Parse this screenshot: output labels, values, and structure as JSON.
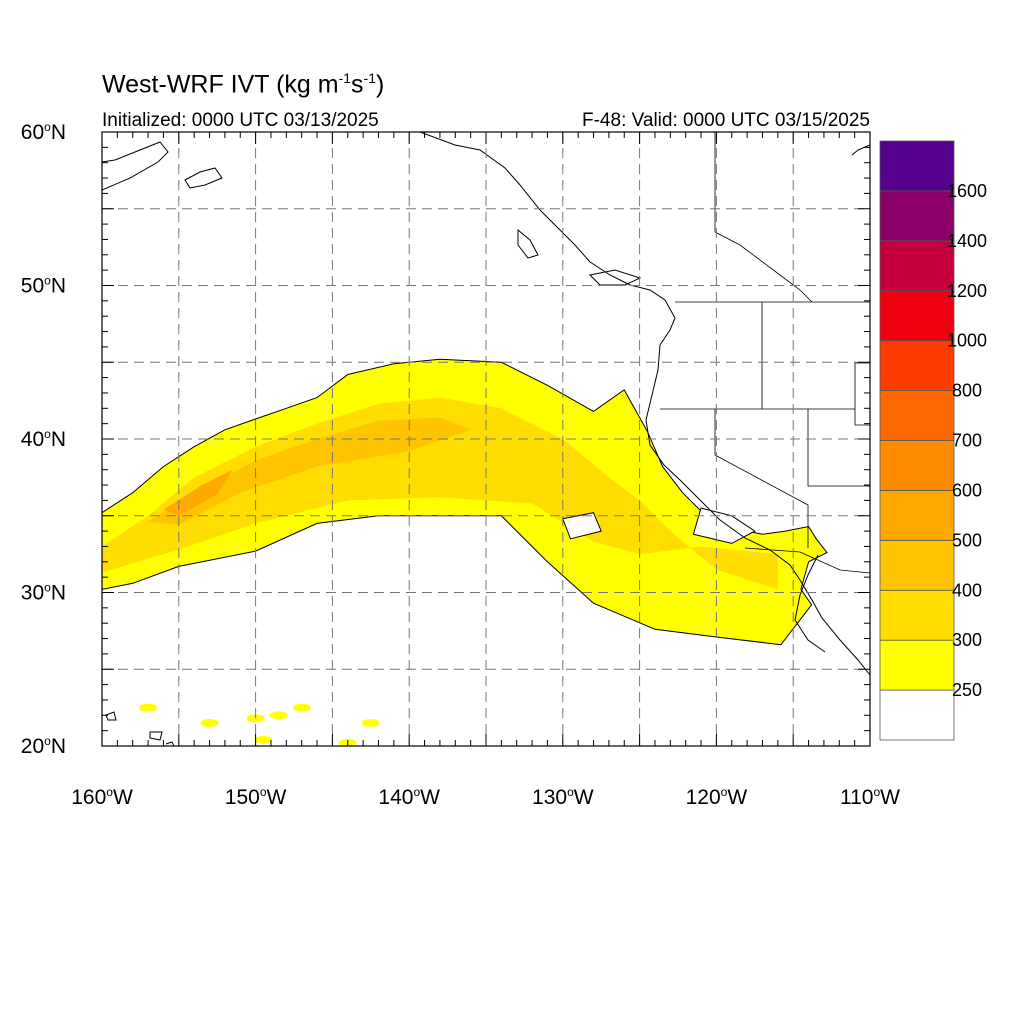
{
  "header": {
    "title_main": "West-WRF IVT (kg m",
    "title_sup1": "-1",
    "title_mid": "s",
    "title_sup2": "-1",
    "title_end": ")",
    "initialized": "Initialized: 0000 UTC 03/13/2025",
    "valid": "F-48: Valid: 0000 UTC 03/15/2025"
  },
  "map": {
    "lon_range": [
      -160,
      -110
    ],
    "lat_range": [
      20,
      60
    ],
    "grid": "dashed",
    "lat_labels": [
      {
        "lat": 60,
        "deg": "60",
        "hemi": "N"
      },
      {
        "lat": 50,
        "deg": "50",
        "hemi": "N"
      },
      {
        "lat": 40,
        "deg": "40",
        "hemi": "N"
      },
      {
        "lat": 30,
        "deg": "30",
        "hemi": "N"
      },
      {
        "lat": 20,
        "deg": "20",
        "hemi": "N"
      }
    ],
    "lon_labels": [
      {
        "lon": -160,
        "deg": "160",
        "hemi": "W"
      },
      {
        "lon": -150,
        "deg": "150",
        "hemi": "W"
      },
      {
        "lon": -140,
        "deg": "140",
        "hemi": "W"
      },
      {
        "lon": -130,
        "deg": "130",
        "hemi": "W"
      },
      {
        "lon": -120,
        "deg": "120",
        "hemi": "W"
      },
      {
        "lon": -110,
        "deg": "110",
        "hemi": "W"
      }
    ]
  },
  "colorbar": {
    "levels": [
      "250",
      "300",
      "400",
      "500",
      "600",
      "700",
      "800",
      "1000",
      "1200",
      "1400",
      "1600"
    ],
    "colors": [
      "#ffffff",
      "#ffff00",
      "#ffdd00",
      "#ffc400",
      "#ffa800",
      "#ff8c00",
      "#ff6a00",
      "#ff3c00",
      "#ee0010",
      "#c4003c",
      "#8a0066",
      "#56008e"
    ]
  },
  "ivt_field": {
    "levels": [
      250,
      300,
      400,
      500
    ],
    "colors": [
      "#ffff00",
      "#ffdd00",
      "#ffc400",
      "#ffa800"
    ],
    "plume_outline": [
      [
        -160,
        35.2
      ],
      [
        -158,
        36.5
      ],
      [
        -156,
        38.2
      ],
      [
        -154,
        39.5
      ],
      [
        -152,
        40.6
      ],
      [
        -150,
        41.3
      ],
      [
        -148,
        42.0
      ],
      [
        -146,
        42.7
      ],
      [
        -144,
        44.2
      ],
      [
        -141,
        44.9
      ],
      [
        -138,
        45.2
      ],
      [
        -134,
        45.0
      ],
      [
        -131,
        43.5
      ],
      [
        -128,
        41.8
      ],
      [
        -126,
        43.2
      ],
      [
        -124.5,
        40.5
      ],
      [
        -123.5,
        38.2
      ],
      [
        -122.2,
        36.5
      ],
      [
        -121,
        35.3
      ],
      [
        -119,
        34.2
      ],
      [
        -117,
        33.8
      ],
      [
        -115.5,
        34.0
      ],
      [
        -114,
        34.3
      ],
      [
        -113.5,
        33.5
      ],
      [
        -112.8,
        32.6
      ],
      [
        -114,
        32.0
      ],
      [
        -114.5,
        30.2
      ],
      [
        -113.8,
        29.2
      ],
      [
        -115.8,
        26.6
      ],
      [
        -120,
        27.1
      ],
      [
        -124,
        27.6
      ],
      [
        -128,
        29.3
      ],
      [
        -131,
        32.0
      ],
      [
        -132,
        33.0
      ],
      [
        -134,
        35.0
      ],
      [
        -138,
        35.0
      ],
      [
        -142,
        35.0
      ],
      [
        -146,
        34.5
      ],
      [
        -150,
        32.7
      ],
      [
        -155,
        31.7
      ],
      [
        -158,
        30.6
      ],
      [
        -160,
        30.2
      ]
    ],
    "core_300": [
      [
        -160,
        33.0
      ],
      [
        -157,
        35.0
      ],
      [
        -154,
        37.5
      ],
      [
        -150,
        39.5
      ],
      [
        -146,
        41.0
      ],
      [
        -142,
        42.3
      ],
      [
        -138,
        42.7
      ],
      [
        -134,
        42.0
      ],
      [
        -130,
        40.0
      ],
      [
        -127,
        37.5
      ],
      [
        -125,
        36.0
      ],
      [
        -123,
        34.0
      ],
      [
        -120,
        31.5
      ],
      [
        -116,
        30.2
      ],
      [
        -116,
        32.5
      ],
      [
        -121,
        33.0
      ],
      [
        -125,
        32.5
      ],
      [
        -128,
        33.3
      ],
      [
        -132,
        35.8
      ],
      [
        -138,
        36.2
      ],
      [
        -144,
        36.0
      ],
      [
        -150,
        34.5
      ],
      [
        -155,
        32.8
      ],
      [
        -160,
        31.3
      ]
    ],
    "core_400": [
      [
        -157,
        34.6
      ],
      [
        -154,
        36.5
      ],
      [
        -150,
        38.6
      ],
      [
        -146,
        40.0
      ],
      [
        -142,
        41.2
      ],
      [
        -138,
        41.4
      ],
      [
        -136,
        40.6
      ],
      [
        -140,
        39.2
      ],
      [
        -146,
        38.2
      ],
      [
        -151,
        36.5
      ],
      [
        -155,
        34.4
      ]
    ],
    "core_500": [
      [
        -156,
        35.4
      ],
      [
        -153.5,
        37.0
      ],
      [
        -151.5,
        38.0
      ],
      [
        -152.5,
        36.4
      ],
      [
        -155,
        35.0
      ]
    ],
    "islands": [
      [
        [
          -121,
          35.5
        ],
        [
          -119,
          35.0
        ],
        [
          -117.5,
          34.0
        ],
        [
          -119,
          33.2
        ],
        [
          -121.5,
          33.8
        ]
      ],
      [
        [
          -130,
          34.8
        ],
        [
          -128,
          35.2
        ],
        [
          -127.5,
          34.0
        ],
        [
          -129.5,
          33.5
        ]
      ]
    ],
    "scatter": [
      [
        -157,
        22.5
      ],
      [
        -153,
        21.5
      ],
      [
        -150,
        21.8
      ],
      [
        -148.5,
        22.0
      ],
      [
        -147,
        22.5
      ],
      [
        -149.5,
        20.4
      ],
      [
        -144,
        20.2
      ],
      [
        -142.5,
        21.5
      ]
    ]
  }
}
